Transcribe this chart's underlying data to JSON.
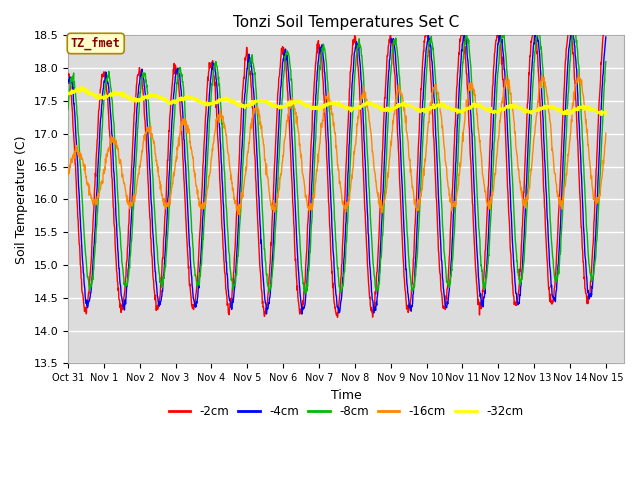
{
  "title": "Tonzi Soil Temperatures Set C",
  "xlabel": "Time",
  "ylabel": "Soil Temperature (C)",
  "ylim": [
    13.5,
    18.5
  ],
  "xlim_start": 0,
  "xlim_end": 15.5,
  "annotation": "TZ_fmet",
  "annotation_color": "#880000",
  "annotation_bg": "#ffffcc",
  "background_color": "#dcdcdc",
  "grid_color": "#ffffff",
  "colors": {
    "-2cm": "#ff0000",
    "-4cm": "#0000ff",
    "-8cm": "#00bb00",
    "-16cm": "#ff8800",
    "-32cm": "#ffff00"
  },
  "legend_labels": [
    "-2cm",
    "-4cm",
    "-8cm",
    "-16cm",
    "-32cm"
  ],
  "yticks": [
    13.5,
    14.0,
    14.5,
    15.0,
    15.5,
    16.0,
    16.5,
    17.0,
    17.5,
    18.0,
    18.5
  ],
  "xtick_labels": [
    "Oct 31",
    "Nov 1",
    "Nov 2",
    "Nov 3",
    "Nov 4",
    "Nov 5",
    "Nov 6",
    "Nov 7",
    "Nov 8",
    "Nov 9",
    "Nov 10",
    "Nov 11",
    "Nov 12",
    "Nov 13",
    "Nov 14",
    "Nov 15"
  ],
  "xtick_positions": [
    0,
    1,
    2,
    3,
    4,
    5,
    6,
    7,
    8,
    9,
    10,
    11,
    12,
    13,
    14,
    15
  ]
}
